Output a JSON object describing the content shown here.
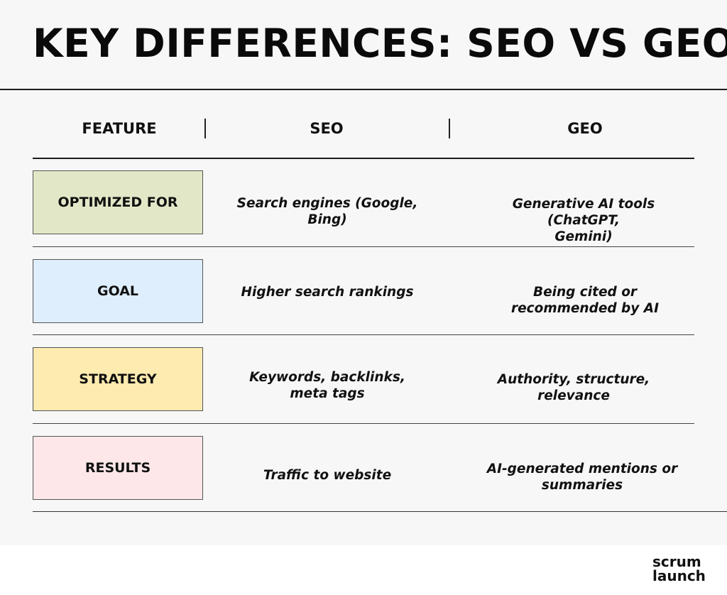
{
  "title": "KEY DIFFERENCES: SEO VS GEO",
  "table": {
    "headers": [
      "FEATURE",
      "SEO",
      "GEO"
    ],
    "rows": [
      {
        "feature": "OPTIMIZED FOR",
        "color": "#e2e8c7",
        "seo": [
          "Search engines (Google,",
          "Bing)"
        ],
        "geo": [
          "Generative AI tools (ChatGPT,",
          "Gemini)"
        ]
      },
      {
        "feature": "GOAL",
        "color": "#dfeefd",
        "seo": [
          "Higher search rankings"
        ],
        "geo": [
          "Being cited or",
          "recommended by AI"
        ]
      },
      {
        "feature": "STRATEGY",
        "color": "#fdebb0",
        "seo": [
          "Keywords, backlinks,",
          "meta tags"
        ],
        "geo": [
          "Authority, structure,",
          "relevance"
        ]
      },
      {
        "feature": "RESULTS",
        "color": "#fde7e8",
        "seo": [
          "Traffic to website"
        ],
        "geo": [
          "AI-generated mentions or",
          "summaries"
        ]
      }
    ]
  },
  "brand": {
    "line1": "scrum",
    "line2": "launch"
  }
}
